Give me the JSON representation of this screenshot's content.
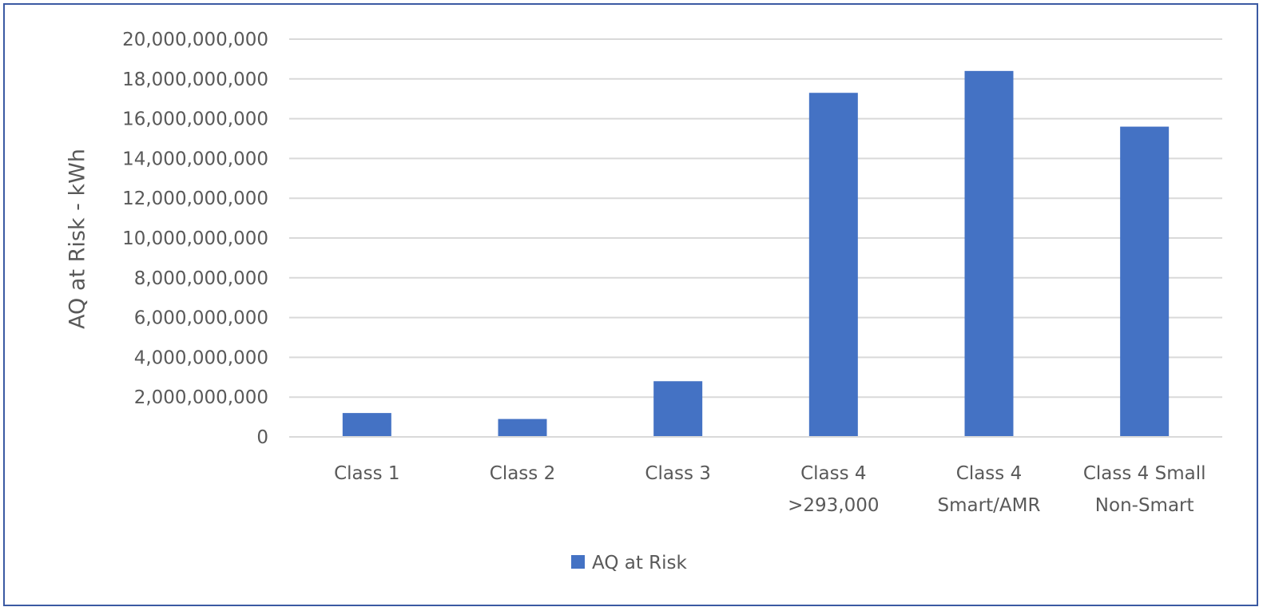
{
  "chart_data": {
    "type": "bar",
    "categories": [
      [
        "Class 1"
      ],
      [
        "Class 2"
      ],
      [
        "Class 3"
      ],
      [
        "Class 4",
        ">293,000"
      ],
      [
        "Class 4",
        "Smart/AMR"
      ],
      [
        "Class 4 Small",
        "Non-Smart"
      ]
    ],
    "series": [
      {
        "name": "AQ at Risk",
        "color": "#4472c4",
        "values": [
          1200000000,
          900000000,
          2800000000,
          17300000000,
          18400000000,
          15600000000
        ]
      }
    ],
    "title": "",
    "xlabel": "",
    "ylabel": "AQ at Risk - kWh",
    "ylim": [
      0,
      20000000000
    ],
    "yticks": [
      0,
      2000000000,
      4000000000,
      6000000000,
      8000000000,
      10000000000,
      12000000000,
      14000000000,
      16000000000,
      18000000000,
      20000000000
    ],
    "ytick_labels": [
      "0",
      "2,000,000,000",
      "4,000,000,000",
      "6,000,000,000",
      "8,000,000,000",
      "10,000,000,000",
      "12,000,000,000",
      "14,000,000,000",
      "16,000,000,000",
      "18,000,000,000",
      "20,000,000,000"
    ],
    "grid": true,
    "grid_color": "#d9d9d9",
    "legend": "bottom",
    "frame_color": "#3b5aa3"
  }
}
